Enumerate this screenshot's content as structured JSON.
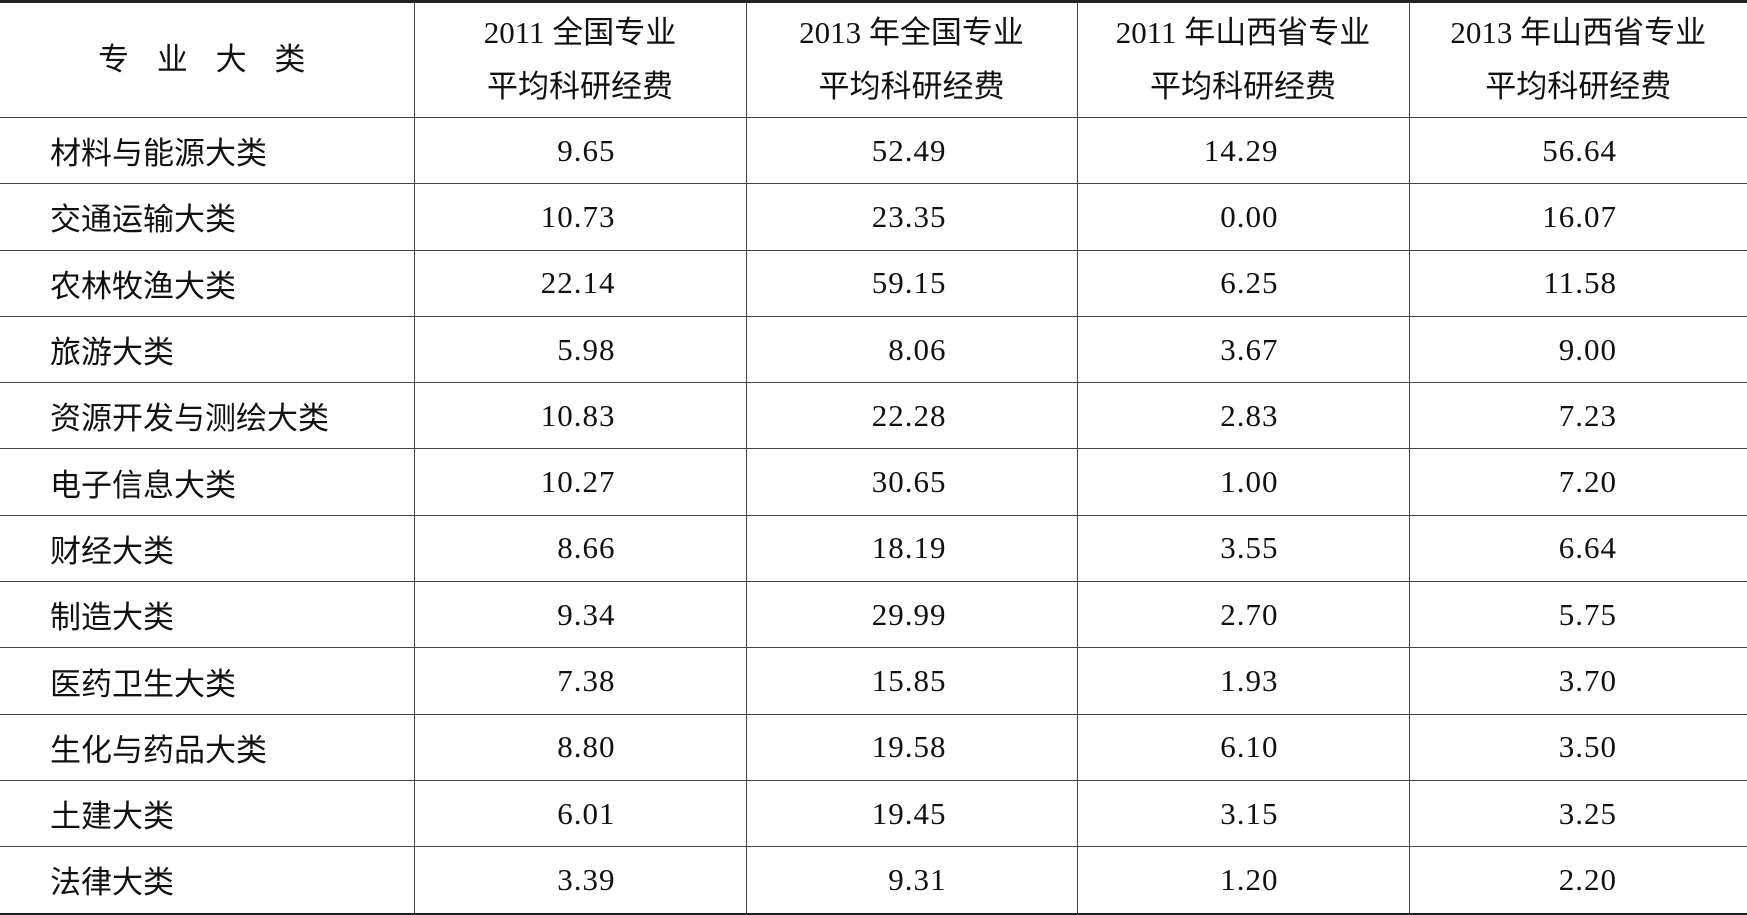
{
  "table": {
    "header": [
      [
        "专 业 大 类"
      ],
      [
        "2011 全国专业",
        "平均科研经费"
      ],
      [
        "2013 年全国专业",
        "平均科研经费"
      ],
      [
        "2011 年山西省专业",
        "平均科研经费"
      ],
      [
        "2013 年山西省专业",
        "平均科研经费"
      ]
    ],
    "rows": [
      [
        "材料与能源大类",
        "9.65",
        "52.49",
        "14.29",
        "56.64"
      ],
      [
        "交通运输大类",
        "10.73",
        "23.35",
        "0.00",
        "16.07"
      ],
      [
        "农林牧渔大类",
        "22.14",
        "59.15",
        "6.25",
        "11.58"
      ],
      [
        "旅游大类",
        "5.98",
        "8.06",
        "3.67",
        "9.00"
      ],
      [
        "资源开发与测绘大类",
        "10.83",
        "22.28",
        "2.83",
        "7.23"
      ],
      [
        "电子信息大类",
        "10.27",
        "30.65",
        "1.00",
        "7.20"
      ],
      [
        "财经大类",
        "8.66",
        "18.19",
        "3.55",
        "6.64"
      ],
      [
        "制造大类",
        "9.34",
        "29.99",
        "2.70",
        "5.75"
      ],
      [
        "医药卫生大类",
        "7.38",
        "15.85",
        "1.93",
        "3.70"
      ],
      [
        "生化与药品大类",
        "8.80",
        "19.58",
        "6.10",
        "3.50"
      ],
      [
        "土建大类",
        "6.01",
        "19.45",
        "3.15",
        "3.25"
      ],
      [
        "法律大类",
        "3.39",
        "9.31",
        "1.20",
        "2.20"
      ]
    ]
  }
}
